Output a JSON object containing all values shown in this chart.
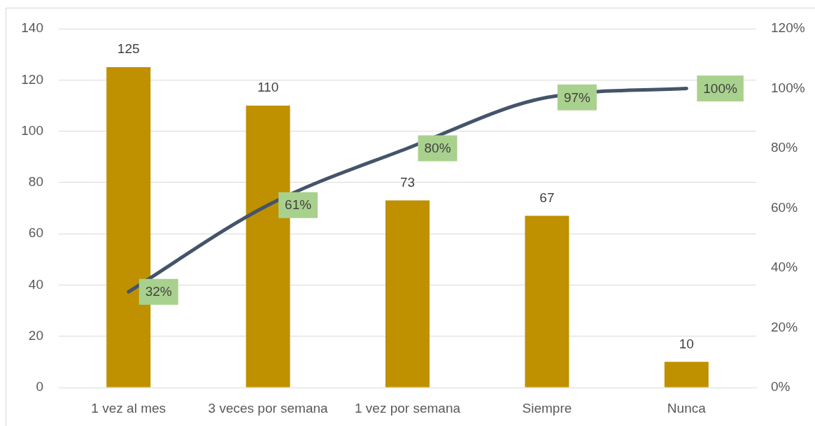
{
  "chart_data": {
    "type": "bar",
    "categories": [
      "1 vez al mes",
      "3 veces por semana",
      "1 vez por semana",
      "Siempre",
      "Nunca"
    ],
    "series": [
      {
        "color": "#bf9000",
        "values": [
          125,
          110,
          73,
          67,
          10
        ],
        "value_labels": [
          "125",
          "110",
          "73",
          "67",
          "10"
        ]
      },
      {
        "type": "line",
        "axis": "y2",
        "color": "#44546a",
        "values": [
          32,
          61,
          80,
          97,
          100
        ],
        "value_labels": [
          "32%",
          "61%",
          "80%",
          "97%",
          "100%"
        ]
      }
    ],
    "ylim": [
      0,
      140
    ],
    "yticks": [
      0,
      20,
      40,
      60,
      80,
      100,
      120,
      140
    ],
    "y2lim": [
      0,
      120
    ],
    "y2ticks": [
      {
        "value": 0,
        "label": "0%"
      },
      {
        "value": 20,
        "label": "20%"
      },
      {
        "value": 40,
        "label": "40%"
      },
      {
        "value": 60,
        "label": "60%"
      },
      {
        "value": 80,
        "label": "80%"
      },
      {
        "value": 100,
        "label": "100%"
      },
      {
        "value": 120,
        "label": "120%"
      }
    ],
    "grid": "y"
  }
}
